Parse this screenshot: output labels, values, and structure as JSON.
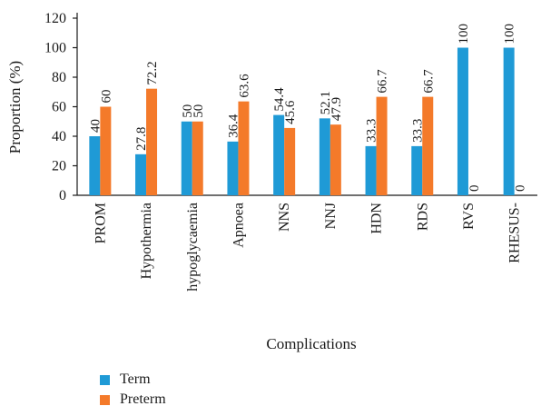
{
  "chart_data": {
    "type": "bar",
    "ylabel": "Proportion (%)",
    "xlabel": "Complications",
    "ylim": [
      0,
      120
    ],
    "yticks": [
      0,
      20,
      40,
      60,
      80,
      100,
      120
    ],
    "categories": [
      "PROM",
      "Hypothermia",
      "hypoglycaemia",
      "Apnoea",
      "NNS",
      "NNJ",
      "HDN",
      "RDS",
      "RVS",
      "RHESUS-"
    ],
    "series": [
      {
        "name": "Term",
        "color": "#1f9ad6",
        "values": [
          40,
          27.8,
          50,
          36.4,
          54.4,
          52.1,
          33.3,
          33.3,
          100,
          100
        ],
        "labels": [
          "40",
          "27.8",
          "50",
          "36.4",
          "54.4",
          "52.1",
          "33.3",
          "33.3",
          "100",
          "100"
        ]
      },
      {
        "name": "Preterm",
        "color": "#f47a2a",
        "values": [
          60,
          72.2,
          50,
          63.6,
          45.6,
          47.9,
          66.7,
          66.7,
          0,
          0
        ],
        "labels": [
          "60",
          "72.2",
          "50",
          "63.6",
          "45.6",
          "47.9",
          "66.7",
          "66.7",
          "0",
          "0"
        ]
      }
    ],
    "legend": {
      "position": "bottom-left",
      "items": [
        "Term",
        "Preterm"
      ]
    },
    "grid": false
  }
}
